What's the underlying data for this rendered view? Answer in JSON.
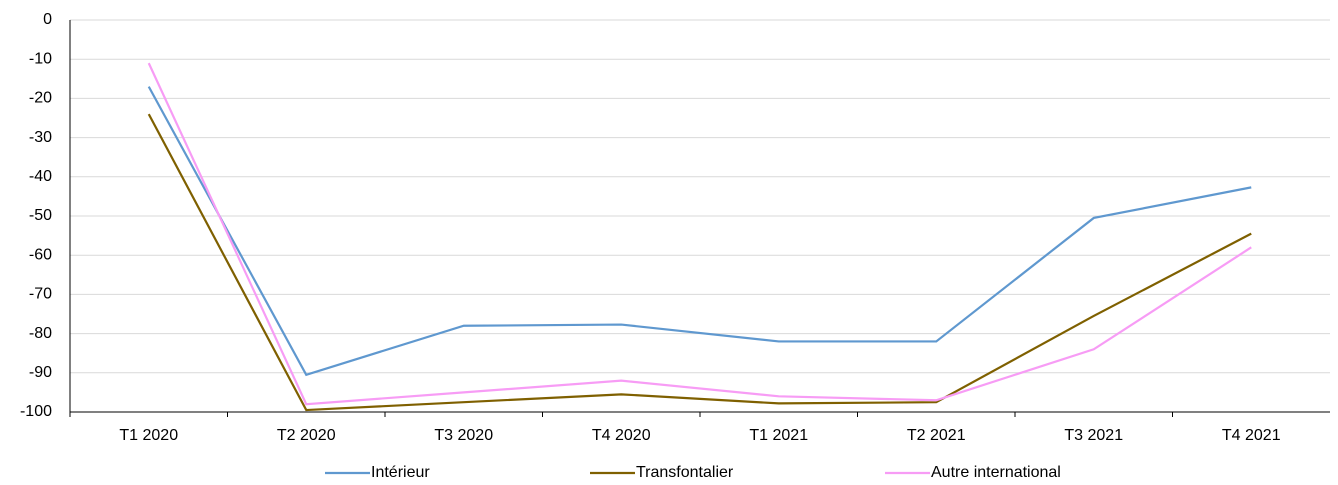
{
  "chart_data": {
    "type": "line",
    "categories": [
      "T1 2020",
      "T2 2020",
      "T3 2020",
      "T4 2020",
      "T1 2021",
      "T2 2021",
      "T3 2021",
      "T4 2021"
    ],
    "series": [
      {
        "name": "Intérieur",
        "color": "#5f98cf",
        "values": [
          -17,
          -90.5,
          -78,
          -77.7,
          -82,
          -82,
          -50.5,
          -42.7
        ]
      },
      {
        "name": "Transfontalier",
        "color": "#7f6000",
        "values": [
          -24,
          -99.5,
          -97.5,
          -95.5,
          -97.8,
          -97.5,
          -75.5,
          -54.5
        ]
      },
      {
        "name": "Autre international",
        "color": "#f79cf5",
        "values": [
          -11,
          -98,
          -95,
          -92,
          -96,
          -97,
          -84,
          -58
        ]
      }
    ],
    "ylim": [
      -100,
      0
    ],
    "yticks": [
      0,
      -10,
      -20,
      -30,
      -40,
      -50,
      -60,
      -70,
      -80,
      -90,
      -100
    ],
    "grid": true,
    "legend": "bottom"
  }
}
